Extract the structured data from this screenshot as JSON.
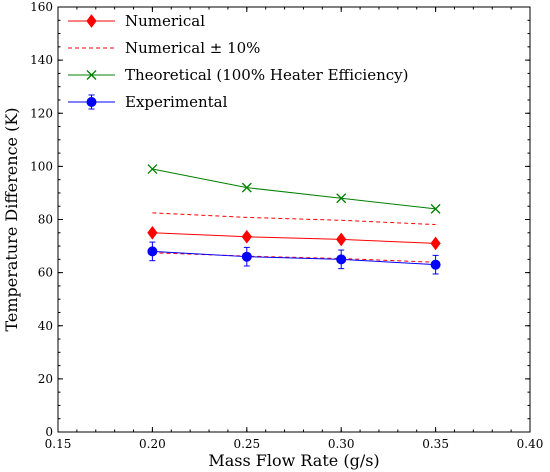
{
  "chart_data": {
    "type": "line",
    "xlabel": "Mass Flow Rate (g/s)",
    "ylabel": "Temperature Difference (K)",
    "xlim": [
      0.15,
      0.4
    ],
    "ylim": [
      0,
      160
    ],
    "xticks": [
      "0.15",
      "0.20",
      "0.25",
      "0.30",
      "0.35",
      "0.40"
    ],
    "yticks": [
      "0",
      "20",
      "40",
      "60",
      "80",
      "100",
      "120",
      "140",
      "160"
    ],
    "x": [
      0.2,
      0.25,
      0.3,
      0.35
    ],
    "legend_position": "top-left",
    "grid": false,
    "series": [
      {
        "name": "Numerical",
        "values": [
          75,
          73.5,
          72.5,
          71
        ],
        "color": "#ff0000",
        "marker": "diamond",
        "line": "solid"
      },
      {
        "name": "Numerical ± 10%",
        "upper": [
          82.5,
          80.8,
          79.7,
          78.1
        ],
        "lower": [
          67.5,
          66.2,
          65.3,
          63.9
        ],
        "color": "#ff0000",
        "marker": "none",
        "line": "dashed"
      },
      {
        "name": "Theoretical (100% Heater Efficiency)",
        "values": [
          99,
          92,
          88,
          84
        ],
        "color": "#008000",
        "marker": "x",
        "line": "solid"
      },
      {
        "name": "Experimental",
        "values": [
          68,
          66,
          65,
          63
        ],
        "errors": [
          3.5,
          3.5,
          3.5,
          3.5
        ],
        "color": "#0000ff",
        "marker": "circle",
        "line": "solid"
      }
    ]
  }
}
